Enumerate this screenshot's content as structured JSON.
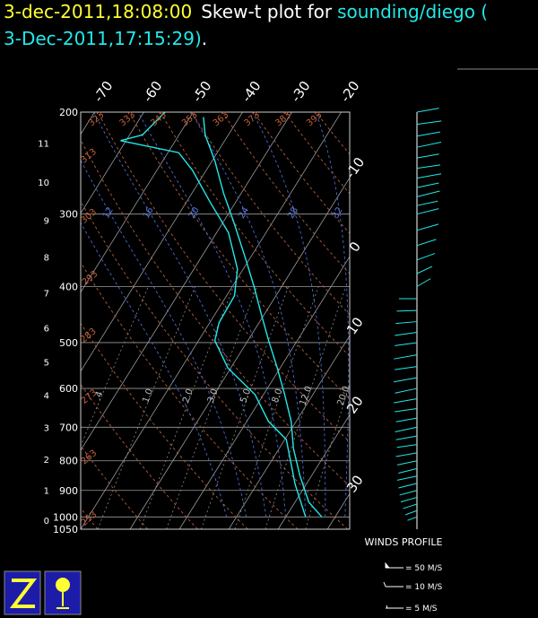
{
  "chart_data": {
    "type": "skewt",
    "title": {
      "time": "3-dec-2011,18:08:00",
      "text": "Skew-t plot for",
      "source": "sounding/diego (",
      "source_time": "3-Dec-2011,17:15:29)",
      "end": "."
    },
    "ylim": [
      1050,
      200
    ],
    "log_y": true,
    "yticks": [
      200,
      300,
      400,
      500,
      600,
      700,
      800,
      900,
      1000,
      1050
    ],
    "height_ticks": [
      0,
      1,
      2,
      3,
      4,
      5,
      6,
      7,
      8,
      9,
      10,
      11
    ],
    "xlim": [
      -20,
      34.5
    ],
    "xticks": [
      -70,
      -60,
      -50,
      -40,
      -30,
      -20,
      -10,
      0,
      10,
      20,
      30
    ],
    "dry_adiabats": [
      253,
      263,
      273,
      283,
      293,
      303,
      313,
      323,
      333,
      343,
      353,
      363,
      373,
      383,
      393
    ],
    "moist_adiabats": [
      8,
      12,
      16,
      20,
      24,
      28,
      32
    ],
    "mixing_ratios": [
      {
        "value": 0.4,
        "label": ".4"
      },
      {
        "value": 1,
        "label": "1.0"
      },
      {
        "value": 2,
        "label": "2.0"
      },
      {
        "value": 3,
        "label": "3.0"
      },
      {
        "value": 5,
        "label": "5.0"
      },
      {
        "value": 8,
        "label": "8.0"
      },
      {
        "value": 12,
        "label": "12.0"
      },
      {
        "value": 20,
        "label": "20.0"
      }
    ],
    "series": [
      {
        "color": "#22e8e8",
        "pressure": [
          1000,
          943,
          848,
          762,
          684,
          615,
          553,
          496,
          446,
          401,
          360,
          312,
          276,
          243,
          219,
          204
        ],
        "values": [
          27.3,
          22.8,
          17.6,
          12.9,
          9.0,
          4.3,
          -0.6,
          -5.8,
          -10.7,
          -15.5,
          -20.6,
          -27.5,
          -33.6,
          -39.4,
          -44.7,
          -47.3
        ]
      },
      {
        "color": "#22e8e8",
        "pressure": [
          1000,
          879,
          735,
          684,
          615,
          553,
          496,
          462,
          415,
          373,
          323,
          286,
          252,
          235,
          224,
          219,
          200
        ],
        "values": [
          24.0,
          17.8,
          10.3,
          4.4,
          -1.7,
          -10.6,
          -16.7,
          -18.1,
          -18.4,
          -21.2,
          -27.6,
          -35.2,
          -42.8,
          -47.8,
          -61.1,
          -57.4,
          -55.7
        ]
      }
    ],
    "winds": {
      "title": "WINDS PROFILE",
      "color": "#22e8e8",
      "pressure": [
        200,
        210,
        220,
        230,
        240,
        250,
        260,
        270,
        280,
        290,
        300,
        320,
        340,
        360,
        380,
        400,
        420,
        440,
        460,
        480,
        500,
        525,
        550,
        575,
        600,
        625,
        650,
        675,
        700,
        725,
        750,
        775,
        800,
        825,
        850,
        875,
        900,
        925,
        950,
        975,
        1000
      ],
      "speed": [
        20,
        22,
        21,
        22,
        20,
        21,
        22,
        20,
        21,
        19,
        20,
        20,
        18,
        17,
        15,
        14,
        16,
        18,
        19,
        20,
        20,
        21,
        20,
        21,
        20,
        21,
        20,
        19,
        20,
        19,
        18,
        19,
        18,
        17,
        18,
        17,
        16,
        15,
        13,
        11,
        9
      ],
      "direction": [
        80,
        82,
        80,
        78,
        80,
        82,
        80,
        78,
        76,
        78,
        76,
        74,
        72,
        70,
        65,
        60,
        270,
        268,
        265,
        262,
        262,
        260,
        262,
        260,
        258,
        260,
        262,
        260,
        258,
        260,
        262,
        260,
        258,
        256,
        258,
        256,
        255,
        254,
        252,
        250,
        250
      ],
      "legend": [
        "= 50 M/S",
        "= 10 M/S",
        "= 5 M/S"
      ]
    }
  }
}
